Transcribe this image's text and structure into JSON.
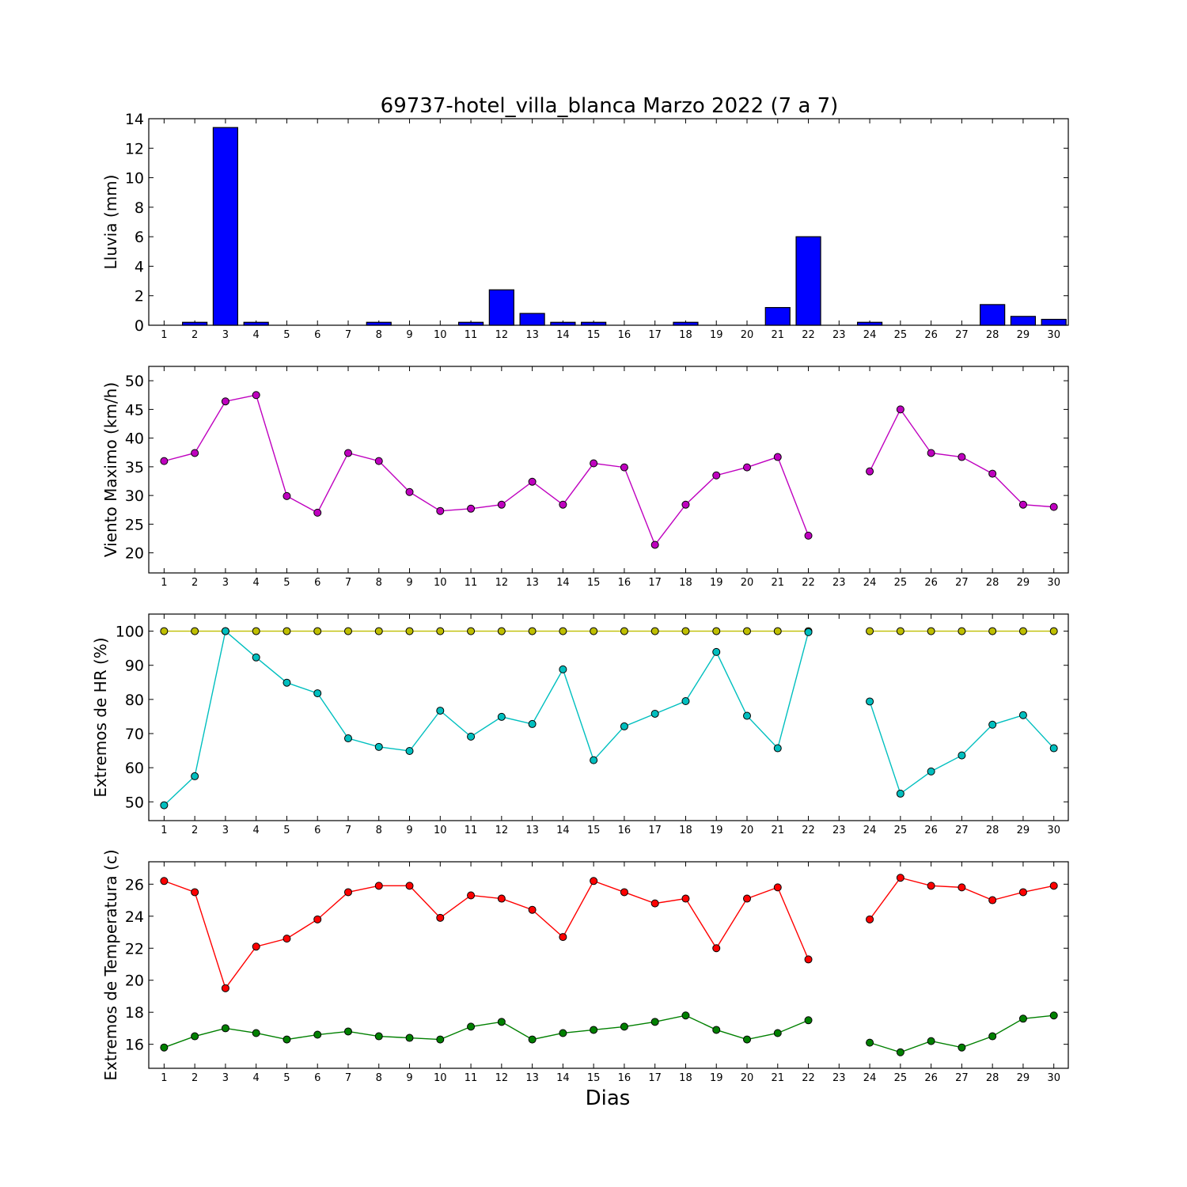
{
  "title": "69737-hotel_villa_blanca Marzo 2022  (7 a 7)",
  "xlabel": "Dias",
  "colors": {
    "rain": "#0000ff",
    "wind": "#bf00bf",
    "hr_max": "#bfbf00",
    "hr_min": "#00bfbf",
    "temp_max": "#ff0000",
    "temp_min": "#008000"
  },
  "chart_data": [
    {
      "type": "bar",
      "ylabel": "Lluvia (mm)",
      "ylim": [
        0,
        14
      ],
      "yticks": [
        0,
        2,
        4,
        6,
        8,
        10,
        12,
        14
      ],
      "x": [
        1,
        2,
        3,
        4,
        5,
        6,
        7,
        8,
        9,
        10,
        11,
        12,
        13,
        14,
        15,
        16,
        17,
        18,
        19,
        20,
        21,
        22,
        23,
        24,
        25,
        26,
        27,
        28,
        29,
        30
      ],
      "xtick_labels": [
        "1",
        "2",
        "3",
        "4",
        "5",
        "6",
        "7",
        "8",
        "9",
        "10",
        "11",
        "12",
        "13",
        "14",
        "15",
        "16",
        "17",
        "18",
        "19",
        "20",
        "21",
        "22",
        "23",
        "24",
        "25",
        "26",
        "27",
        "28",
        "29",
        "30"
      ],
      "series": [
        {
          "values": [
            0,
            0.2,
            13.4,
            0.2,
            0,
            0,
            0,
            0.2,
            0,
            0,
            0.2,
            2.4,
            0.8,
            0.2,
            0.2,
            0,
            0,
            0.2,
            0,
            0,
            1.2,
            6.0,
            null,
            0.2,
            0,
            0,
            0,
            1.4,
            0.6,
            0.4
          ]
        }
      ]
    },
    {
      "type": "line",
      "ylabel": "Viento Maximo (km/h)",
      "ylim": [
        16.5,
        52.5
      ],
      "yticks": [
        20,
        25,
        30,
        35,
        40,
        45,
        50
      ],
      "x": [
        1,
        2,
        3,
        4,
        5,
        6,
        7,
        8,
        9,
        10,
        11,
        12,
        13,
        14,
        15,
        16,
        17,
        18,
        19,
        20,
        21,
        22,
        23,
        24,
        25,
        26,
        27,
        28,
        29,
        30
      ],
      "xtick_labels": [
        "1",
        "2",
        "3",
        "4",
        "5",
        "6",
        "7",
        "8",
        "9",
        "10",
        "11",
        "12",
        "13",
        "14",
        "15",
        "16",
        "17",
        "18",
        "19",
        "20",
        "21",
        "22",
        "23",
        "24",
        "25",
        "26",
        "27",
        "28",
        "29",
        "30"
      ],
      "series": [
        {
          "values": [
            36.0,
            37.4,
            46.4,
            47.5,
            29.9,
            27.0,
            37.4,
            36.0,
            30.6,
            27.3,
            27.7,
            28.4,
            32.4,
            28.4,
            35.6,
            34.9,
            21.4,
            28.4,
            33.5,
            34.9,
            36.7,
            23.0,
            null,
            34.2,
            45.0,
            37.4,
            36.7,
            33.8,
            28.4,
            28.0
          ]
        }
      ]
    },
    {
      "type": "line",
      "ylabel": "Extremos de HR (%)",
      "ylim": [
        44.5,
        105
      ],
      "yticks": [
        50,
        60,
        70,
        80,
        90,
        100
      ],
      "x": [
        1,
        2,
        3,
        4,
        5,
        6,
        7,
        8,
        9,
        10,
        11,
        12,
        13,
        14,
        15,
        16,
        17,
        18,
        19,
        20,
        21,
        22,
        23,
        24,
        25,
        26,
        27,
        28,
        29,
        30
      ],
      "xtick_labels": [
        "1",
        "2",
        "3",
        "4",
        "5",
        "6",
        "7",
        "8",
        "9",
        "10",
        "11",
        "12",
        "13",
        "14",
        "15",
        "16",
        "17",
        "18",
        "19",
        "20",
        "21",
        "22",
        "23",
        "24",
        "25",
        "26",
        "27",
        "28",
        "29",
        "30"
      ],
      "series": [
        {
          "values": [
            100,
            100,
            100,
            100,
            100,
            100,
            100,
            100,
            100,
            100,
            100,
            100,
            100,
            100,
            100,
            100,
            100,
            100,
            100,
            100,
            100,
            100,
            null,
            100,
            100,
            100,
            100,
            100,
            100,
            100
          ]
        },
        {
          "values": [
            49,
            57.5,
            100,
            92.3,
            84.9,
            81.8,
            68.6,
            66.1,
            64.9,
            76.7,
            69.1,
            74.9,
            72.8,
            88.8,
            62.2,
            72.1,
            75.8,
            79.5,
            93.9,
            75.2,
            65.7,
            99.7,
            null,
            79.4,
            52.4,
            58.9,
            63.6,
            72.6,
            75.4,
            65.7
          ]
        }
      ]
    },
    {
      "type": "line",
      "ylabel": "Extremos de Temperatura (c)",
      "ylim": [
        14.5,
        27.4
      ],
      "yticks": [
        16,
        18,
        20,
        22,
        24,
        26
      ],
      "x": [
        1,
        2,
        3,
        4,
        5,
        6,
        7,
        8,
        9,
        10,
        11,
        12,
        13,
        14,
        15,
        16,
        17,
        18,
        19,
        20,
        21,
        22,
        23,
        24,
        25,
        26,
        27,
        28,
        29,
        30
      ],
      "xtick_labels": [
        "1",
        "2",
        "3",
        "4",
        "5",
        "6",
        "7",
        "8",
        "9",
        "10",
        "11",
        "12",
        "13",
        "14",
        "15",
        "16",
        "17",
        "18",
        "19",
        "20",
        "21",
        "22",
        "23",
        "24",
        "25",
        "26",
        "27",
        "28",
        "29",
        "30"
      ],
      "series": [
        {
          "values": [
            26.2,
            25.5,
            19.5,
            22.1,
            22.6,
            23.8,
            25.5,
            25.9,
            25.9,
            23.9,
            25.3,
            25.1,
            24.4,
            22.7,
            26.2,
            25.5,
            24.8,
            25.1,
            22.0,
            25.1,
            25.8,
            21.3,
            null,
            23.8,
            26.4,
            25.9,
            25.8,
            25.0,
            25.5,
            25.9
          ]
        },
        {
          "values": [
            15.8,
            16.5,
            17.0,
            16.7,
            16.3,
            16.6,
            16.8,
            16.5,
            16.4,
            16.3,
            17.1,
            17.4,
            16.3,
            16.7,
            16.9,
            17.1,
            17.4,
            17.8,
            16.9,
            16.3,
            16.7,
            17.5,
            null,
            16.1,
            15.5,
            16.2,
            15.8,
            16.5,
            17.6,
            17.8
          ]
        }
      ]
    }
  ]
}
